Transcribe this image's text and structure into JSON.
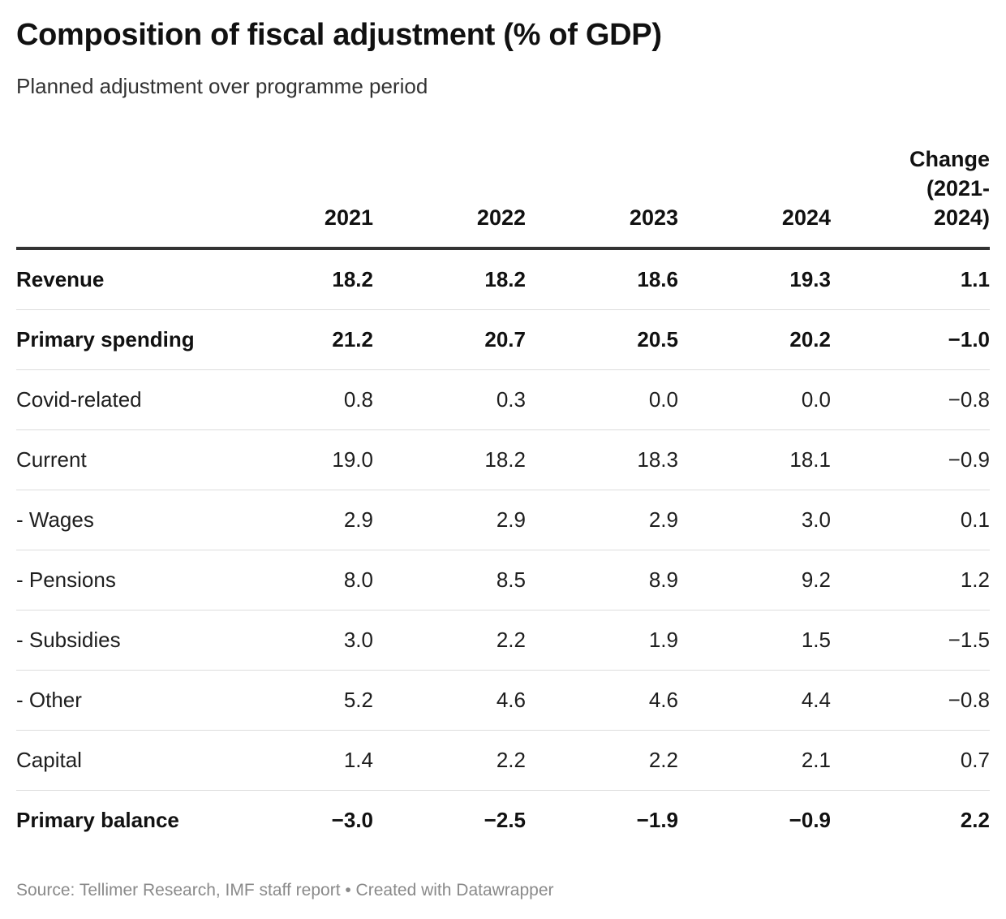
{
  "title": "Composition of fiscal adjustment (% of GDP)",
  "subtitle": "Planned adjustment over programme period",
  "source": "Source: Tellimer Research, IMF staff report • Created with Datawrapper",
  "chart_data": {
    "type": "table",
    "title": "Composition of fiscal adjustment (% of GDP)",
    "subtitle": "Planned adjustment over programme period",
    "columns": [
      "",
      "2021",
      "2022",
      "2023",
      "2024",
      "Change\n(2021-\n2024)"
    ],
    "rows": [
      {
        "label": "Revenue",
        "bold": true,
        "values": [
          "18.2",
          "18.2",
          "18.6",
          "19.3",
          "1.1"
        ]
      },
      {
        "label": "Primary spending",
        "bold": true,
        "values": [
          "21.2",
          "20.7",
          "20.5",
          "20.2",
          "−1.0"
        ]
      },
      {
        "label": "Covid-related",
        "bold": false,
        "values": [
          "0.8",
          "0.3",
          "0.0",
          "0.0",
          "−0.8"
        ]
      },
      {
        "label": "Current",
        "bold": false,
        "values": [
          "19.0",
          "18.2",
          "18.3",
          "18.1",
          "−0.9"
        ]
      },
      {
        "label": "- Wages",
        "bold": false,
        "values": [
          "2.9",
          "2.9",
          "2.9",
          "3.0",
          "0.1"
        ]
      },
      {
        "label": "- Pensions",
        "bold": false,
        "values": [
          "8.0",
          "8.5",
          "8.9",
          "9.2",
          "1.2"
        ]
      },
      {
        "label": "- Subsidies",
        "bold": false,
        "values": [
          "3.0",
          "2.2",
          "1.9",
          "1.5",
          "−1.5"
        ]
      },
      {
        "label": "- Other",
        "bold": false,
        "values": [
          "5.2",
          "4.6",
          "4.6",
          "4.4",
          "−0.8"
        ]
      },
      {
        "label": "Capital",
        "bold": false,
        "values": [
          "1.4",
          "2.2",
          "2.2",
          "2.1",
          "0.7"
        ]
      },
      {
        "label": "Primary balance",
        "bold": true,
        "values": [
          "−3.0",
          "−2.5",
          "−1.9",
          "−0.9",
          "2.2"
        ]
      }
    ]
  }
}
